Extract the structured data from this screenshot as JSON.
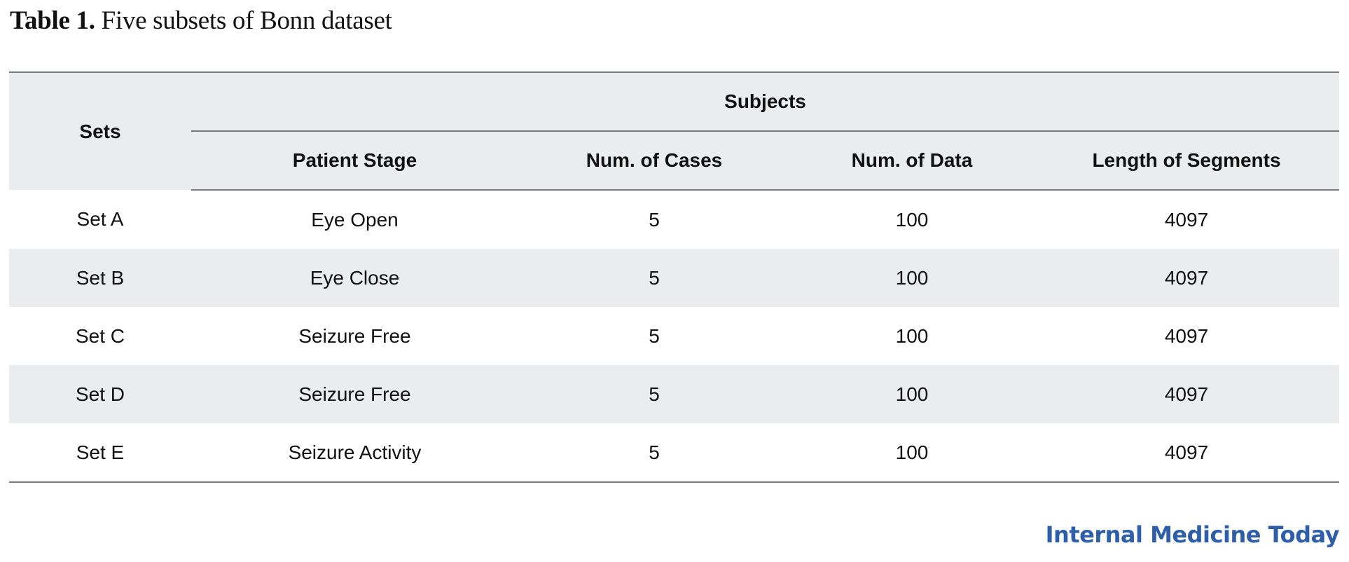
{
  "caption": {
    "label": "Table 1.",
    "text": "Five subsets of Bonn dataset"
  },
  "table": {
    "header": {
      "sets": "Sets",
      "group": "Subjects",
      "columns": [
        "Patient Stage",
        "Num. of Cases",
        "Num. of Data",
        "Length of Segments"
      ]
    },
    "rows": [
      [
        "Set A",
        "Eye Open",
        "5",
        "100",
        "4097"
      ],
      [
        "Set B",
        "Eye Close",
        "5",
        "100",
        "4097"
      ],
      [
        "Set C",
        "Seizure Free",
        "5",
        "100",
        "4097"
      ],
      [
        "Set D",
        "Seizure Free",
        "5",
        "100",
        "4097"
      ],
      [
        "Set E",
        "Seizure Activity",
        "5",
        "100",
        "4097"
      ]
    ]
  },
  "brand": {
    "text": "Internal Medicine Today",
    "color": "#2f5ea8"
  },
  "colors": {
    "header_bg": "#ebecee",
    "stripe_bg": "#ebecee",
    "rule": "#7a7a7a"
  }
}
